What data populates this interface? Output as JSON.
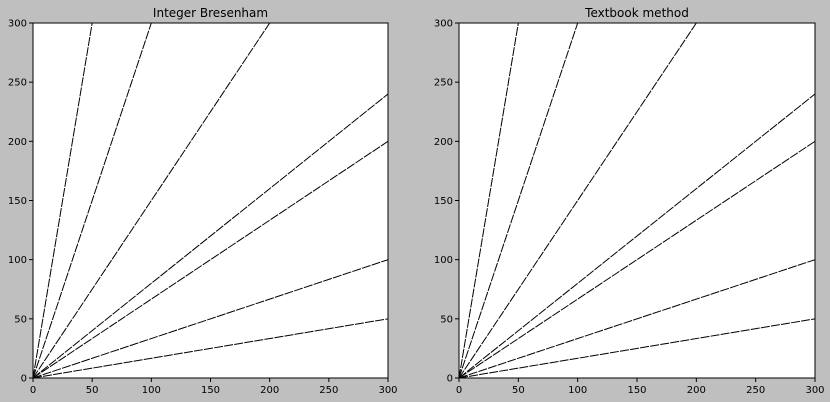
{
  "figure": {
    "background": "#bfbfbf"
  },
  "chart_data": [
    {
      "type": "line",
      "title": "Integer Bresenham",
      "xlabel": "",
      "ylabel": "",
      "xlim": [
        0,
        300
      ],
      "ylim": [
        0,
        300
      ],
      "xticks": [
        0,
        50,
        100,
        150,
        200,
        250,
        300
      ],
      "yticks": [
        0,
        50,
        100,
        150,
        200,
        250,
        300
      ],
      "grid": false,
      "line_color": "#000000",
      "background": "#ffffff",
      "series": [
        {
          "x": [
            0,
            300
          ],
          "y": [
            0,
            50
          ]
        },
        {
          "x": [
            0,
            300
          ],
          "y": [
            0,
            100
          ]
        },
        {
          "x": [
            0,
            300
          ],
          "y": [
            0,
            200
          ]
        },
        {
          "x": [
            0,
            300
          ],
          "y": [
            0,
            240
          ]
        },
        {
          "x": [
            0,
            200
          ],
          "y": [
            0,
            300
          ]
        },
        {
          "x": [
            0,
            100
          ],
          "y": [
            0,
            300
          ]
        },
        {
          "x": [
            0,
            50
          ],
          "y": [
            0,
            300
          ]
        }
      ]
    },
    {
      "type": "line",
      "title": "Textbook method",
      "xlabel": "",
      "ylabel": "",
      "xlim": [
        0,
        300
      ],
      "ylim": [
        0,
        300
      ],
      "xticks": [
        0,
        50,
        100,
        150,
        200,
        250,
        300
      ],
      "yticks": [
        0,
        50,
        100,
        150,
        200,
        250,
        300
      ],
      "grid": false,
      "line_color": "#000000",
      "background": "#ffffff",
      "series": [
        {
          "x": [
            0,
            300
          ],
          "y": [
            0,
            50
          ]
        },
        {
          "x": [
            0,
            300
          ],
          "y": [
            0,
            100
          ]
        },
        {
          "x": [
            0,
            300
          ],
          "y": [
            0,
            200
          ]
        },
        {
          "x": [
            0,
            300
          ],
          "y": [
            0,
            240
          ]
        },
        {
          "x": [
            0,
            200
          ],
          "y": [
            0,
            300
          ]
        },
        {
          "x": [
            0,
            100
          ],
          "y": [
            0,
            300
          ]
        },
        {
          "x": [
            0,
            50
          ],
          "y": [
            0,
            300
          ]
        }
      ]
    }
  ]
}
